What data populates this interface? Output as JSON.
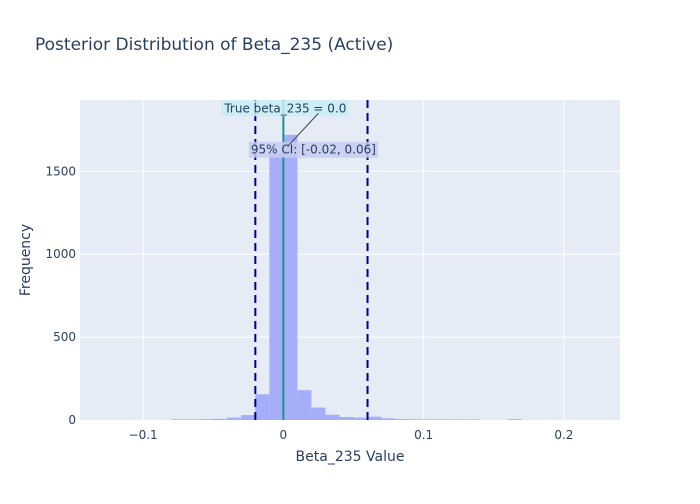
{
  "chart_data": {
    "type": "histogram",
    "title": "Posterior Distribution of Beta_235 (Active)",
    "xlabel": "Beta_235 Value",
    "ylabel": "Frequency",
    "xlim": [
      -0.145,
      0.24
    ],
    "ylim": [
      0,
      1930
    ],
    "x_ticks": [
      -0.1,
      0,
      0.1,
      0.2
    ],
    "x_tick_labels": [
      "−0.1",
      "0",
      "0.1",
      "0.2"
    ],
    "y_ticks": [
      0,
      500,
      1000,
      1500
    ],
    "y_tick_labels": [
      "0",
      "500",
      "1000",
      "1500"
    ],
    "grid": true,
    "bins": [
      {
        "x0": -0.08,
        "x1": -0.07,
        "count": 4
      },
      {
        "x0": -0.07,
        "x1": -0.06,
        "count": 4
      },
      {
        "x0": -0.06,
        "x1": -0.05,
        "count": 5
      },
      {
        "x0": -0.05,
        "x1": -0.04,
        "count": 7
      },
      {
        "x0": -0.04,
        "x1": -0.03,
        "count": 15
      },
      {
        "x0": -0.03,
        "x1": -0.02,
        "count": 30
      },
      {
        "x0": -0.02,
        "x1": -0.01,
        "count": 155
      },
      {
        "x0": -0.01,
        "x1": 0.0,
        "count": 1610
      },
      {
        "x0": 0.0,
        "x1": 0.01,
        "count": 1720
      },
      {
        "x0": 0.01,
        "x1": 0.02,
        "count": 180
      },
      {
        "x0": 0.02,
        "x1": 0.03,
        "count": 75
      },
      {
        "x0": 0.03,
        "x1": 0.04,
        "count": 32
      },
      {
        "x0": 0.04,
        "x1": 0.05,
        "count": 18
      },
      {
        "x0": 0.05,
        "x1": 0.06,
        "count": 15
      },
      {
        "x0": 0.06,
        "x1": 0.07,
        "count": 20
      },
      {
        "x0": 0.07,
        "x1": 0.08,
        "count": 10
      },
      {
        "x0": 0.08,
        "x1": 0.09,
        "count": 6
      },
      {
        "x0": 0.09,
        "x1": 0.1,
        "count": 4
      },
      {
        "x0": 0.1,
        "x1": 0.11,
        "count": 4
      },
      {
        "x0": 0.11,
        "x1": 0.12,
        "count": 4
      },
      {
        "x0": 0.12,
        "x1": 0.13,
        "count": 3
      },
      {
        "x0": 0.13,
        "x1": 0.14,
        "count": 3
      },
      {
        "x0": 0.16,
        "x1": 0.17,
        "count": 5
      }
    ],
    "vertical_lines": [
      {
        "x": -0.02,
        "style": "dashed",
        "color": "#00008b"
      },
      {
        "x": 0.06,
        "style": "dashed",
        "color": "#00008b"
      },
      {
        "x": 0.0,
        "style": "solid",
        "color": "#1f8f8f"
      }
    ],
    "annotations": [
      {
        "text": "True beta_235 = 0.0",
        "x": 0.0,
        "y": 1880,
        "bg": "#c8f0f5"
      },
      {
        "text": "95% CI: [-0.02, 0.06]",
        "x": 0.02,
        "y": 1630,
        "bg": "#c7cdf1"
      }
    ],
    "colors": {
      "bar": "#a5aef8",
      "plot_bg": "#e5ecf6",
      "grid": "#ffffff",
      "text": "#2a3f5f",
      "ci_line": "#00008b",
      "true_line": "#1f8f8f"
    }
  }
}
